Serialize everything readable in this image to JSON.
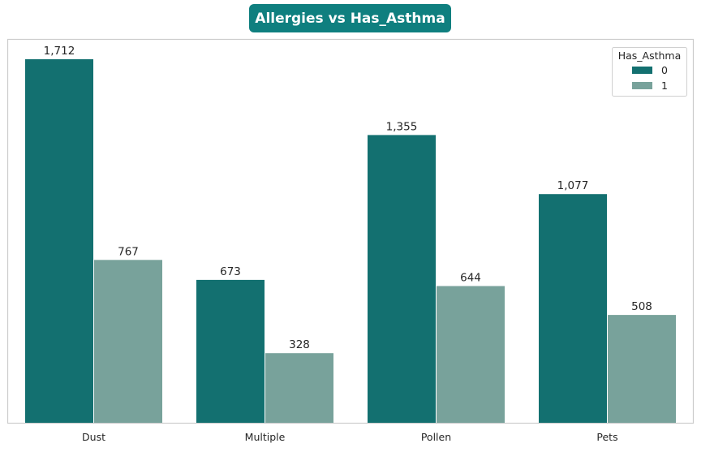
{
  "chart_data": {
    "type": "bar",
    "title": "Allergies vs Has_Asthma",
    "xlabel": "",
    "ylabel": "",
    "categories": [
      "Dust",
      "Multiple",
      "Pollen",
      "Pets"
    ],
    "series": [
      {
        "name": "0",
        "values": [
          1712,
          673,
          1355,
          1077
        ],
        "color": "#137070"
      },
      {
        "name": "1",
        "values": [
          767,
          328,
          644,
          508
        ],
        "color": "#78a29b"
      }
    ],
    "value_labels": [
      [
        "1,712",
        "673",
        "1,355",
        "1,077"
      ],
      [
        "767",
        "328",
        "644",
        "508"
      ]
    ],
    "ylim": [
      0,
      1790
    ],
    "grid": false,
    "legend": {
      "title": "Has_Asthma",
      "position": "top-right"
    },
    "title_background": "#0f7f7f",
    "frame_color": "#cccccc"
  }
}
